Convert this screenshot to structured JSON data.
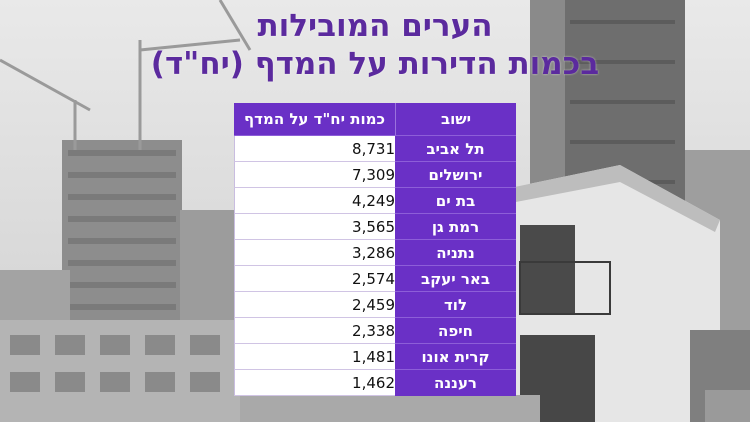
{
  "title": {
    "line1": "הערים המובילות",
    "line2": "בכמות הדירות על המדף (יח\"ד)"
  },
  "table": {
    "header_city": "ישוב",
    "header_value": "כמות יח\"ד על המדף",
    "rows": [
      {
        "city": "תל אביב",
        "value": "8,731"
      },
      {
        "city": "ירושלים",
        "value": "7,309"
      },
      {
        "city": "בת ים",
        "value": "4,249"
      },
      {
        "city": "רמת גן",
        "value": "3,565"
      },
      {
        "city": "נתניה",
        "value": "3,286"
      },
      {
        "city": "באר יעקב",
        "value": "2,574"
      },
      {
        "city": "לוד",
        "value": "2,459"
      },
      {
        "city": "חיפה",
        "value": "2,338"
      },
      {
        "city": "קרית אונו",
        "value": "1,481"
      },
      {
        "city": "רעננה",
        "value": "1,462"
      }
    ]
  },
  "colors": {
    "accent": "#6a30c6",
    "title": "#5b2a9e"
  }
}
